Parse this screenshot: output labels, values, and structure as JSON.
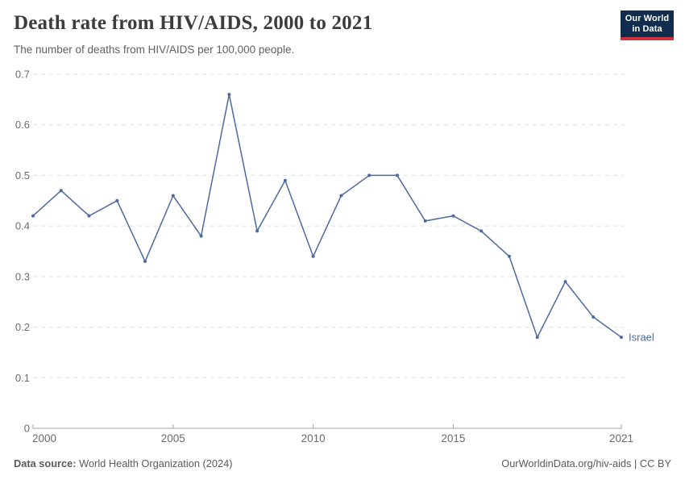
{
  "header": {
    "title": "Death rate from HIV/AIDS, 2000 to 2021",
    "subtitle": "The number of deaths from HIV/AIDS per 100,000 people."
  },
  "logo": {
    "line1": "Our World",
    "line2": "in Data",
    "bg_color": "#102D4E",
    "bar_color": "#CE313C"
  },
  "chart_data": {
    "type": "line",
    "title": "Death rate from HIV/AIDS, 2000 to 2021",
    "entity_label": "Israel",
    "x": [
      2000,
      2001,
      2002,
      2003,
      2004,
      2005,
      2006,
      2007,
      2008,
      2009,
      2010,
      2011,
      2012,
      2013,
      2014,
      2015,
      2016,
      2017,
      2018,
      2019,
      2020,
      2021
    ],
    "series": [
      {
        "name": "Israel",
        "values": [
          0.42,
          0.47,
          0.42,
          0.45,
          0.33,
          0.46,
          0.38,
          0.66,
          0.39,
          0.49,
          0.34,
          0.46,
          0.5,
          0.5,
          0.41,
          0.42,
          0.39,
          0.34,
          0.18,
          0.29,
          0.22,
          0.18
        ]
      }
    ],
    "x_range": [
      2000,
      2021
    ],
    "ylim": [
      0,
      0.7
    ],
    "x_ticks": [
      2000,
      2005,
      2010,
      2015,
      2021
    ],
    "y_ticks": [
      {
        "value": 0,
        "label": "0"
      },
      {
        "value": 0.1,
        "label": "0.1"
      },
      {
        "value": 0.2,
        "label": "0.2"
      },
      {
        "value": 0.3,
        "label": "0.3"
      },
      {
        "value": 0.4,
        "label": "0.4"
      },
      {
        "value": 0.5,
        "label": "0.5"
      },
      {
        "value": 0.6,
        "label": "0.6"
      },
      {
        "value": 0.7,
        "label": "0.7"
      }
    ],
    "grid": "horizontal-dashed",
    "legend_position": "end-of-line-label",
    "line_color": "#4C6A9C",
    "grid_color": "#E0E0E0",
    "axis_color": "#A3A3A3",
    "tick_label_color": "#6B6B6B"
  },
  "footer": {
    "source_label": "Data source:",
    "source_value": "World Health Organization (2024)",
    "credit": "OurWorldinData.org/hiv-aids | CC BY"
  }
}
